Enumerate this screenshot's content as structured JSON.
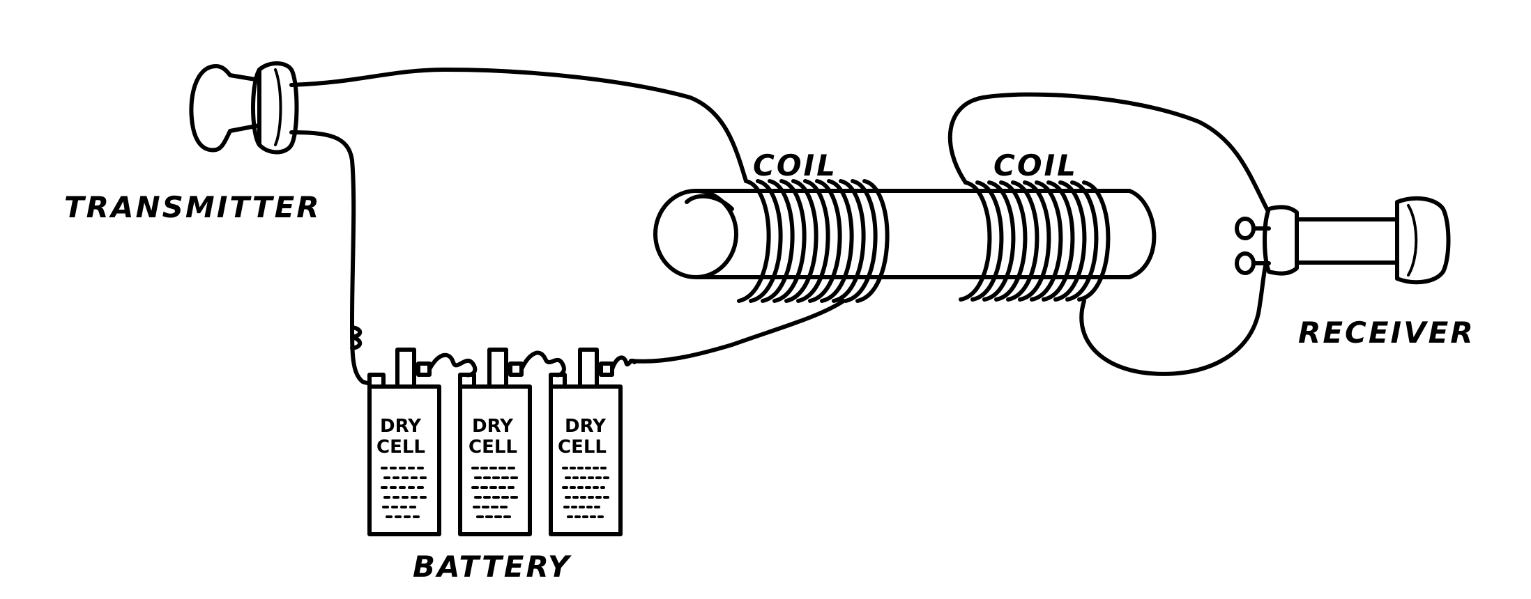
{
  "labels": {
    "transmitter": "TRANSMITTER",
    "coil_left": "COIL",
    "coil_right": "COIL",
    "receiver": "RECEIVER",
    "battery": "BATTERY"
  },
  "cells": [
    {
      "line1": "DRY",
      "line2": "CELL"
    },
    {
      "line1": "DRY",
      "line2": "CELL"
    },
    {
      "line1": "DRY",
      "line2": "CELL"
    }
  ]
}
